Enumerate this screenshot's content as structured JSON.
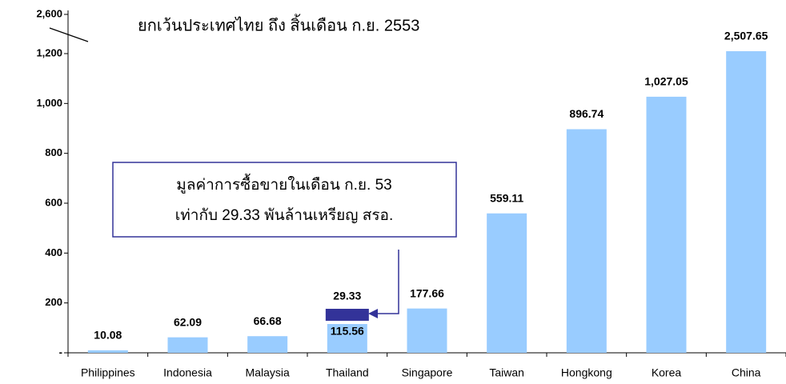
{
  "chart_data": {
    "type": "bar",
    "title": "ยกเว้นประเทศไทย ถึง สิ้นเดือน ก.ย. 2553",
    "categories": [
      "Philippines",
      "Indonesia",
      "Malaysia",
      "Thailand",
      "Singapore",
      "Taiwan",
      "Hongkong",
      "Korea",
      "China"
    ],
    "values": [
      10.08,
      62.09,
      66.68,
      115.56,
      177.66,
      559.11,
      896.74,
      1027.05,
      2507.65
    ],
    "value_labels": [
      "10.08",
      "62.09",
      "66.68",
      "115.56",
      "177.66",
      "559.11",
      "896.74",
      "1,027.05",
      "2,507.65"
    ],
    "color": "#99ccff",
    "ylim": [
      0,
      2600
    ],
    "axis_break": [
      1200,
      2600
    ],
    "yticks": [
      {
        "value": 0,
        "label": "-"
      },
      200,
      400,
      600,
      800,
      {
        "value": 1000,
        "label": "1,000"
      },
      {
        "value": 1200,
        "label": "1,200"
      },
      {
        "value": 2600,
        "label": "2,600"
      }
    ],
    "highlight": {
      "category_index": 3,
      "value": 29.33,
      "color": "#333399"
    },
    "annotation": [
      "มูลค่าการซื้อขายในเดือน ก.ย. 53",
      "เท่ากับ 29.33 พันล้านเหรียญ สรอ."
    ]
  }
}
